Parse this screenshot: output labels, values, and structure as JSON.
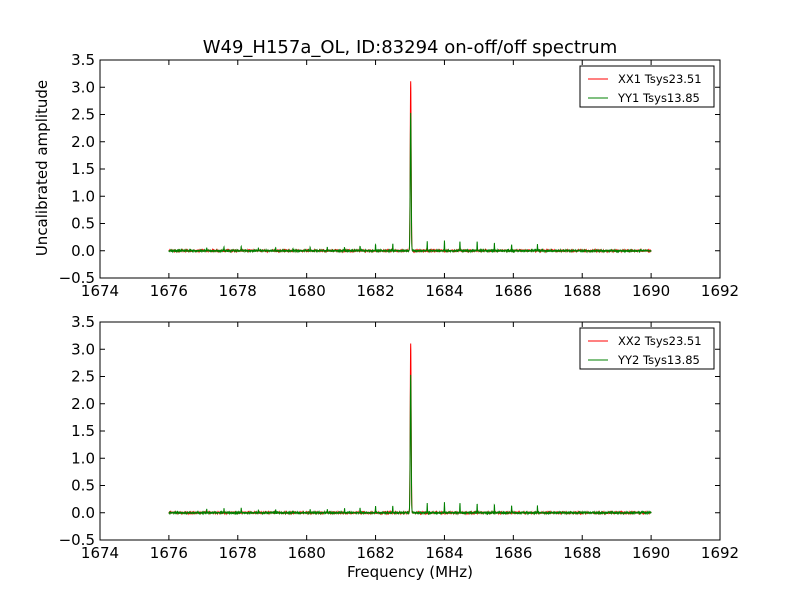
{
  "chart_data": {
    "type": "line",
    "title": "W49_H157a_OL, ID:83294 on-off/off spectrum",
    "xlabel": "Frequency (MHz)",
    "ylabel": "Uncalibrated amplitude",
    "xlim": [
      1674,
      1692
    ],
    "ylim": [
      -0.5,
      3.5
    ],
    "xticks": [
      "1674",
      "1676",
      "1678",
      "1680",
      "1682",
      "1684",
      "1686",
      "1688",
      "1690",
      "1692"
    ],
    "yticks": [
      "−0.5",
      "0.0",
      "0.5",
      "1.0",
      "1.5",
      "2.0",
      "2.5",
      "3.0",
      "3.5"
    ],
    "grid": false,
    "legend_position": "top-right",
    "data_range_x": [
      1676,
      1690
    ],
    "baseline": 0.0,
    "colors": {
      "red": "#ff0000",
      "green": "#008000"
    },
    "panels": [
      {
        "series": [
          {
            "name": "XX1 Tsys23.51",
            "color": "#ff0000",
            "peaks": [
              {
                "x": 1683.02,
                "y": 3.12
              }
            ]
          },
          {
            "name": "YY1 Tsys13.85",
            "color": "#008000",
            "peaks": [
              {
                "x": 1683.02,
                "y": 2.52
              },
              {
                "x": 1677.1,
                "y": 0.06
              },
              {
                "x": 1677.6,
                "y": 0.08
              },
              {
                "x": 1678.1,
                "y": 0.09
              },
              {
                "x": 1678.6,
                "y": 0.05
              },
              {
                "x": 1679.1,
                "y": 0.07
              },
              {
                "x": 1679.6,
                "y": 0.04
              },
              {
                "x": 1680.1,
                "y": 0.06
              },
              {
                "x": 1680.6,
                "y": 0.07
              },
              {
                "x": 1681.1,
                "y": 0.07
              },
              {
                "x": 1681.55,
                "y": 0.1
              },
              {
                "x": 1682.0,
                "y": 0.12
              },
              {
                "x": 1682.5,
                "y": 0.14
              },
              {
                "x": 1683.5,
                "y": 0.17
              },
              {
                "x": 1684.0,
                "y": 0.18
              },
              {
                "x": 1684.45,
                "y": 0.18
              },
              {
                "x": 1684.95,
                "y": 0.17
              },
              {
                "x": 1685.45,
                "y": 0.15
              },
              {
                "x": 1685.95,
                "y": 0.12
              },
              {
                "x": 1686.7,
                "y": 0.12
              }
            ]
          }
        ]
      },
      {
        "series": [
          {
            "name": "XX2 Tsys23.51",
            "color": "#ff0000",
            "peaks": [
              {
                "x": 1683.02,
                "y": 3.12
              }
            ]
          },
          {
            "name": "YY2 Tsys13.85",
            "color": "#008000",
            "peaks": [
              {
                "x": 1683.02,
                "y": 2.52
              },
              {
                "x": 1677.1,
                "y": 0.06
              },
              {
                "x": 1677.6,
                "y": 0.08
              },
              {
                "x": 1678.1,
                "y": 0.09
              },
              {
                "x": 1678.6,
                "y": 0.05
              },
              {
                "x": 1679.1,
                "y": 0.07
              },
              {
                "x": 1679.6,
                "y": 0.04
              },
              {
                "x": 1680.1,
                "y": 0.06
              },
              {
                "x": 1680.6,
                "y": 0.07
              },
              {
                "x": 1681.1,
                "y": 0.07
              },
              {
                "x": 1681.55,
                "y": 0.1
              },
              {
                "x": 1682.0,
                "y": 0.12
              },
              {
                "x": 1682.5,
                "y": 0.14
              },
              {
                "x": 1683.5,
                "y": 0.17
              },
              {
                "x": 1684.0,
                "y": 0.18
              },
              {
                "x": 1684.45,
                "y": 0.18
              },
              {
                "x": 1684.95,
                "y": 0.17
              },
              {
                "x": 1685.45,
                "y": 0.15
              },
              {
                "x": 1685.95,
                "y": 0.12
              },
              {
                "x": 1686.7,
                "y": 0.12
              }
            ]
          }
        ]
      }
    ]
  }
}
